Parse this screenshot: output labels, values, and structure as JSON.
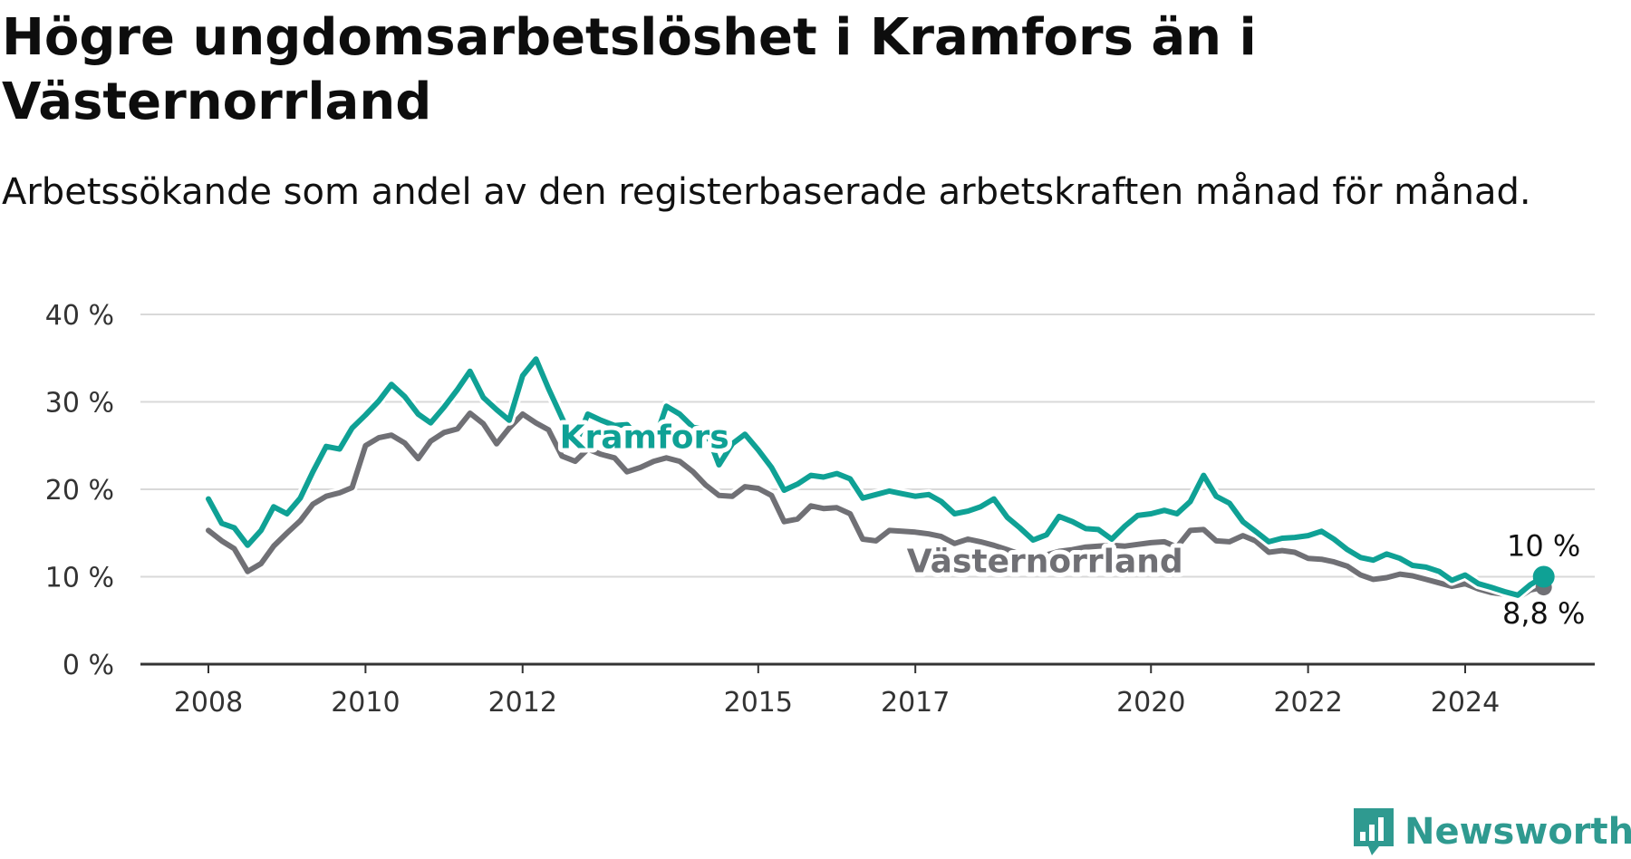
{
  "title": "Högre ungdomsarbetslöshet i Kramfors än i Västernorrland",
  "subtitle": "Arbetssökande som andel av den registerbaserade arbetskraften månad för månad.",
  "brand": {
    "name": "Newsworthy",
    "icon": "newsworthy-logo-icon",
    "color": "#2f9a90"
  },
  "chart_data": {
    "type": "line",
    "title": "Högre ungdomsarbetslöshet i Kramfors än i Västernorrland",
    "xlabel": "",
    "ylabel": "",
    "ylim": [
      0,
      40
    ],
    "xlim": [
      2008,
      2025.75
    ],
    "grid": true,
    "legend": "inline labels",
    "y_ticks": [
      0,
      10,
      20,
      30,
      40
    ],
    "y_tick_labels": [
      "0 %",
      "10 %",
      "20 %",
      "30 %",
      "40 %"
    ],
    "x_ticks": [
      2008,
      2010,
      2012,
      2015,
      2017,
      2020,
      2022,
      2024
    ],
    "x_tick_labels": [
      "2008",
      "2010",
      "2012",
      "2015",
      "2017",
      "2020",
      "2022",
      "2024"
    ],
    "series": [
      {
        "name": "Västernorrland",
        "color": "#707075",
        "end_label": "8,8 %",
        "points": [
          [
            2008.0,
            15.3
          ],
          [
            2008.17,
            14.1
          ],
          [
            2008.33,
            13.2
          ],
          [
            2008.5,
            10.6
          ],
          [
            2008.67,
            11.5
          ],
          [
            2008.83,
            13.5
          ],
          [
            2009.0,
            15.0
          ],
          [
            2009.17,
            16.4
          ],
          [
            2009.33,
            18.3
          ],
          [
            2009.5,
            19.2
          ],
          [
            2009.67,
            19.6
          ],
          [
            2009.83,
            20.2
          ],
          [
            2010.0,
            25.0
          ],
          [
            2010.17,
            25.9
          ],
          [
            2010.33,
            26.2
          ],
          [
            2010.5,
            25.3
          ],
          [
            2010.67,
            23.5
          ],
          [
            2010.83,
            25.5
          ],
          [
            2011.0,
            26.5
          ],
          [
            2011.17,
            26.9
          ],
          [
            2011.33,
            28.7
          ],
          [
            2011.5,
            27.5
          ],
          [
            2011.67,
            25.2
          ],
          [
            2011.83,
            27.0
          ],
          [
            2012.0,
            28.6
          ],
          [
            2012.17,
            27.6
          ],
          [
            2012.33,
            26.8
          ],
          [
            2012.5,
            23.8
          ],
          [
            2012.67,
            23.2
          ],
          [
            2012.83,
            24.6
          ],
          [
            2013.0,
            24.0
          ],
          [
            2013.17,
            23.6
          ],
          [
            2013.33,
            22.0
          ],
          [
            2013.5,
            22.5
          ],
          [
            2013.67,
            23.2
          ],
          [
            2013.83,
            23.6
          ],
          [
            2014.0,
            23.2
          ],
          [
            2014.17,
            22.0
          ],
          [
            2014.33,
            20.5
          ],
          [
            2014.5,
            19.3
          ],
          [
            2014.67,
            19.2
          ],
          [
            2014.83,
            20.3
          ],
          [
            2015.0,
            20.1
          ],
          [
            2015.17,
            19.3
          ],
          [
            2015.33,
            16.3
          ],
          [
            2015.5,
            16.6
          ],
          [
            2015.67,
            18.1
          ],
          [
            2015.83,
            17.8
          ],
          [
            2016.0,
            17.9
          ],
          [
            2016.17,
            17.2
          ],
          [
            2016.33,
            14.3
          ],
          [
            2016.5,
            14.1
          ],
          [
            2016.67,
            15.3
          ],
          [
            2016.83,
            15.2
          ],
          [
            2017.0,
            15.1
          ],
          [
            2017.17,
            14.9
          ],
          [
            2017.33,
            14.6
          ],
          [
            2017.5,
            13.8
          ],
          [
            2017.67,
            14.3
          ],
          [
            2017.83,
            14.0
          ],
          [
            2018.0,
            13.6
          ],
          [
            2018.17,
            13.1
          ],
          [
            2018.33,
            12.6
          ],
          [
            2018.5,
            12.3
          ],
          [
            2018.67,
            12.5
          ],
          [
            2018.83,
            12.9
          ],
          [
            2019.0,
            13.1
          ],
          [
            2019.17,
            13.4
          ],
          [
            2019.33,
            13.5
          ],
          [
            2019.5,
            13.6
          ],
          [
            2019.67,
            13.5
          ],
          [
            2019.83,
            13.7
          ],
          [
            2020.0,
            13.9
          ],
          [
            2020.17,
            14.0
          ],
          [
            2020.33,
            13.4
          ],
          [
            2020.5,
            15.3
          ],
          [
            2020.67,
            15.4
          ],
          [
            2020.83,
            14.1
          ],
          [
            2021.0,
            14.0
          ],
          [
            2021.17,
            14.7
          ],
          [
            2021.33,
            14.1
          ],
          [
            2021.5,
            12.8
          ],
          [
            2021.67,
            13.0
          ],
          [
            2021.83,
            12.8
          ],
          [
            2022.0,
            12.1
          ],
          [
            2022.17,
            12.0
          ],
          [
            2022.33,
            11.7
          ],
          [
            2022.5,
            11.2
          ],
          [
            2022.67,
            10.2
          ],
          [
            2022.83,
            9.7
          ],
          [
            2023.0,
            9.9
          ],
          [
            2023.17,
            10.3
          ],
          [
            2023.33,
            10.1
          ],
          [
            2023.5,
            9.7
          ],
          [
            2023.67,
            9.3
          ],
          [
            2023.83,
            8.9
          ],
          [
            2024.0,
            9.2
          ],
          [
            2024.17,
            8.6
          ],
          [
            2024.33,
            8.2
          ],
          [
            2024.5,
            8.0
          ],
          [
            2024.67,
            7.6
          ],
          [
            2024.83,
            8.5
          ],
          [
            2025.0,
            8.8
          ]
        ]
      },
      {
        "name": "Kramfors",
        "color": "#0fa195",
        "end_label": "10 %",
        "points": [
          [
            2008.0,
            18.9
          ],
          [
            2008.17,
            16.1
          ],
          [
            2008.33,
            15.6
          ],
          [
            2008.5,
            13.6
          ],
          [
            2008.67,
            15.3
          ],
          [
            2008.83,
            18.0
          ],
          [
            2009.0,
            17.2
          ],
          [
            2009.17,
            19.0
          ],
          [
            2009.33,
            22.0
          ],
          [
            2009.5,
            24.9
          ],
          [
            2009.67,
            24.6
          ],
          [
            2009.83,
            27.0
          ],
          [
            2010.0,
            28.5
          ],
          [
            2010.17,
            30.1
          ],
          [
            2010.33,
            32.0
          ],
          [
            2010.5,
            30.6
          ],
          [
            2010.67,
            28.6
          ],
          [
            2010.83,
            27.6
          ],
          [
            2011.0,
            29.4
          ],
          [
            2011.17,
            31.4
          ],
          [
            2011.33,
            33.5
          ],
          [
            2011.5,
            30.5
          ],
          [
            2011.67,
            29.1
          ],
          [
            2011.83,
            27.9
          ],
          [
            2012.0,
            33.0
          ],
          [
            2012.17,
            34.9
          ],
          [
            2012.33,
            31.5
          ],
          [
            2012.5,
            28.2
          ],
          [
            2012.67,
            25.1
          ],
          [
            2012.83,
            28.6
          ],
          [
            2013.0,
            27.9
          ],
          [
            2013.17,
            27.3
          ],
          [
            2013.33,
            27.4
          ],
          [
            2013.5,
            25.6
          ],
          [
            2013.67,
            25.3
          ],
          [
            2013.83,
            29.5
          ],
          [
            2014.0,
            28.6
          ],
          [
            2014.17,
            27.1
          ],
          [
            2014.33,
            26.8
          ],
          [
            2014.5,
            22.8
          ],
          [
            2014.67,
            25.2
          ],
          [
            2014.83,
            26.3
          ],
          [
            2015.0,
            24.5
          ],
          [
            2015.17,
            22.5
          ],
          [
            2015.33,
            19.9
          ],
          [
            2015.5,
            20.6
          ],
          [
            2015.67,
            21.6
          ],
          [
            2015.83,
            21.4
          ],
          [
            2016.0,
            21.8
          ],
          [
            2016.17,
            21.2
          ],
          [
            2016.33,
            19.0
          ],
          [
            2016.5,
            19.4
          ],
          [
            2016.67,
            19.8
          ],
          [
            2016.83,
            19.5
          ],
          [
            2017.0,
            19.2
          ],
          [
            2017.17,
            19.4
          ],
          [
            2017.33,
            18.6
          ],
          [
            2017.5,
            17.2
          ],
          [
            2017.67,
            17.5
          ],
          [
            2017.83,
            18.0
          ],
          [
            2018.0,
            18.9
          ],
          [
            2018.17,
            16.8
          ],
          [
            2018.33,
            15.6
          ],
          [
            2018.5,
            14.2
          ],
          [
            2018.67,
            14.8
          ],
          [
            2018.83,
            16.9
          ],
          [
            2019.0,
            16.3
          ],
          [
            2019.17,
            15.5
          ],
          [
            2019.33,
            15.4
          ],
          [
            2019.5,
            14.3
          ],
          [
            2019.67,
            15.8
          ],
          [
            2019.83,
            17.0
          ],
          [
            2020.0,
            17.2
          ],
          [
            2020.17,
            17.6
          ],
          [
            2020.33,
            17.2
          ],
          [
            2020.5,
            18.6
          ],
          [
            2020.67,
            21.6
          ],
          [
            2020.83,
            19.2
          ],
          [
            2021.0,
            18.4
          ],
          [
            2021.17,
            16.3
          ],
          [
            2021.33,
            15.2
          ],
          [
            2021.5,
            14.0
          ],
          [
            2021.67,
            14.4
          ],
          [
            2021.83,
            14.5
          ],
          [
            2022.0,
            14.7
          ],
          [
            2022.17,
            15.2
          ],
          [
            2022.33,
            14.3
          ],
          [
            2022.5,
            13.1
          ],
          [
            2022.67,
            12.2
          ],
          [
            2022.83,
            11.9
          ],
          [
            2023.0,
            12.6
          ],
          [
            2023.17,
            12.1
          ],
          [
            2023.33,
            11.3
          ],
          [
            2023.5,
            11.1
          ],
          [
            2023.67,
            10.6
          ],
          [
            2023.83,
            9.6
          ],
          [
            2024.0,
            10.2
          ],
          [
            2024.17,
            9.2
          ],
          [
            2024.33,
            8.8
          ],
          [
            2024.5,
            8.3
          ],
          [
            2024.67,
            7.9
          ],
          [
            2024.83,
            9.1
          ],
          [
            2025.0,
            10.0
          ]
        ]
      }
    ]
  }
}
